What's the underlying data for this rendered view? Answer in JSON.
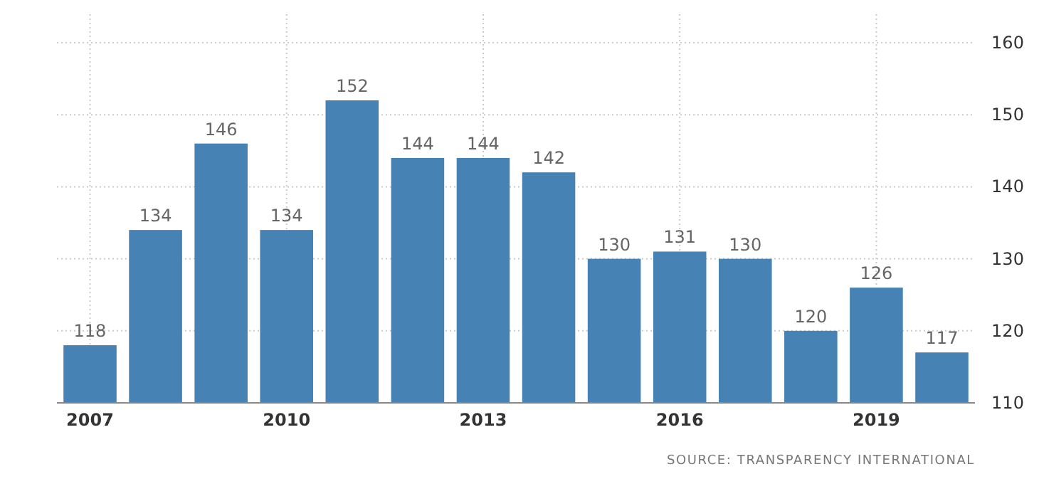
{
  "chart_data": {
    "type": "bar",
    "categories": [
      "2007",
      null,
      null,
      "2010",
      null,
      null,
      "2013",
      null,
      null,
      "2016",
      null,
      null,
      "2019",
      null
    ],
    "values": [
      118,
      134,
      146,
      134,
      152,
      144,
      144,
      142,
      130,
      131,
      130,
      120,
      126,
      117
    ],
    "color": "#4682b4",
    "ylim": [
      110,
      160
    ],
    "yticks": [
      110,
      120,
      130,
      140,
      150,
      160
    ],
    "grid": true,
    "data_labels": true,
    "annotations": [
      "SOURCE: TRANSPARENCY INTERNATIONAL"
    ]
  }
}
